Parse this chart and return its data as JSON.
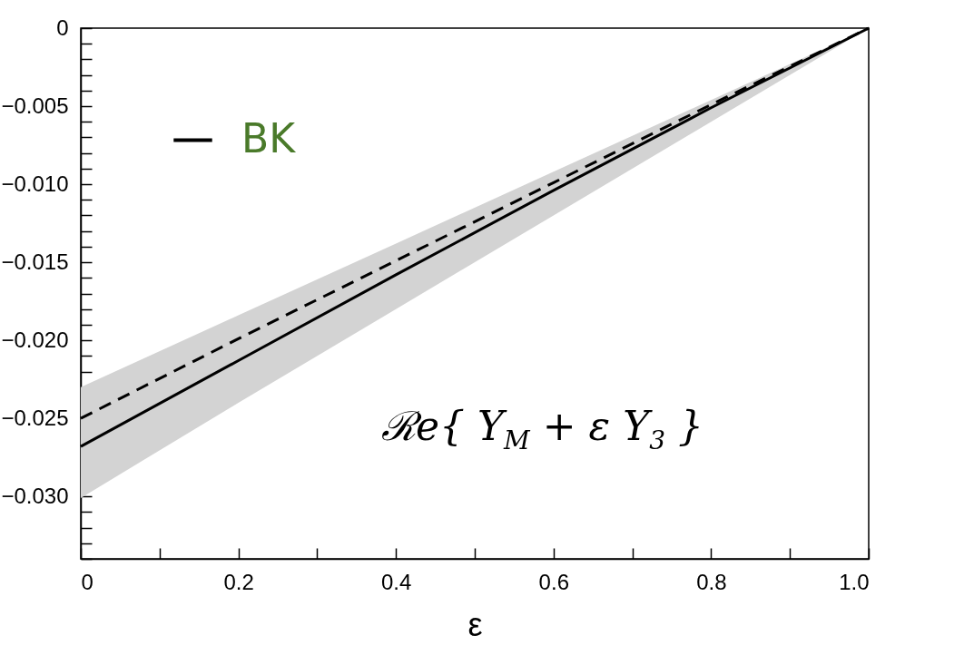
{
  "chart_data": {
    "type": "line",
    "xlabel": "ε",
    "legend": "top left",
    "x": [
      0,
      0.2,
      0.4,
      0.6,
      0.8,
      1
    ],
    "series": [
      {
        "name": "BK",
        "color": "#000000",
        "line_style": "solid",
        "values": [
          -0.0268,
          -0.0213,
          -0.0158,
          -0.0104,
          -0.0051,
          0
        ],
        "lower": [
          -0.0301,
          -0.024,
          -0.018,
          -0.012,
          -0.006,
          0
        ],
        "upper": [
          -0.023,
          -0.0184,
          -0.0138,
          -0.0092,
          -0.0046,
          0
        ]
      },
      {
        "color": "#000000",
        "line_style": "dashed",
        "values": [
          -0.025,
          -0.0199,
          -0.0149,
          -0.0099,
          -0.0049,
          0
        ]
      }
    ],
    "xlim": [
      0,
      1
    ],
    "ylim": [
      -0.034,
      0
    ],
    "xticks": [
      0,
      {
        "value": 0.1,
        "label": null
      },
      0.2,
      {
        "value": 0.3,
        "label": null
      },
      0.4,
      {
        "value": 0.5,
        "label": null
      },
      0.6,
      {
        "value": 0.7,
        "label": null
      },
      0.8,
      {
        "value": 0.9,
        "label": null
      },
      {
        "value": 1,
        "label": "1.0"
      }
    ],
    "yticks": [
      {
        "value": -0.034,
        "label": null
      },
      {
        "value": -0.033,
        "label": null
      },
      {
        "value": -0.032,
        "label": null
      },
      {
        "value": -0.031,
        "label": null
      },
      {
        "value": -0.03,
        "label": "−0.030"
      },
      {
        "value": -0.029,
        "label": null
      },
      {
        "value": -0.028,
        "label": null
      },
      {
        "value": -0.027,
        "label": null
      },
      {
        "value": -0.026,
        "label": null
      },
      {
        "value": -0.025,
        "label": "−0.025"
      },
      {
        "value": -0.024,
        "label": null
      },
      {
        "value": -0.023,
        "label": null
      },
      {
        "value": -0.022,
        "label": null
      },
      {
        "value": -0.021,
        "label": null
      },
      {
        "value": -0.02,
        "label": "−0.020"
      },
      {
        "value": -0.019,
        "label": null
      },
      {
        "value": -0.018,
        "label": null
      },
      {
        "value": -0.017,
        "label": null
      },
      {
        "value": -0.016,
        "label": null
      },
      {
        "value": -0.015,
        "label": "−0.015"
      },
      {
        "value": -0.014,
        "label": null
      },
      {
        "value": -0.013,
        "label": null
      },
      {
        "value": -0.012,
        "label": null
      },
      {
        "value": -0.011,
        "label": null
      },
      {
        "value": -0.01,
        "label": "−0.010"
      },
      {
        "value": -0.009,
        "label": null
      },
      {
        "value": -0.008,
        "label": null
      },
      {
        "value": -0.007,
        "label": null
      },
      {
        "value": -0.006,
        "label": null
      },
      {
        "value": -0.005,
        "label": "−0.005"
      },
      {
        "value": -0.004,
        "label": null
      },
      {
        "value": -0.003,
        "label": null
      },
      {
        "value": -0.002,
        "label": null
      },
      {
        "value": -0.001,
        "label": null
      },
      0
    ],
    "annotations": [
      "ℛe{ Y$_{M}$ + ε Y$_{3}$ }"
    ]
  }
}
